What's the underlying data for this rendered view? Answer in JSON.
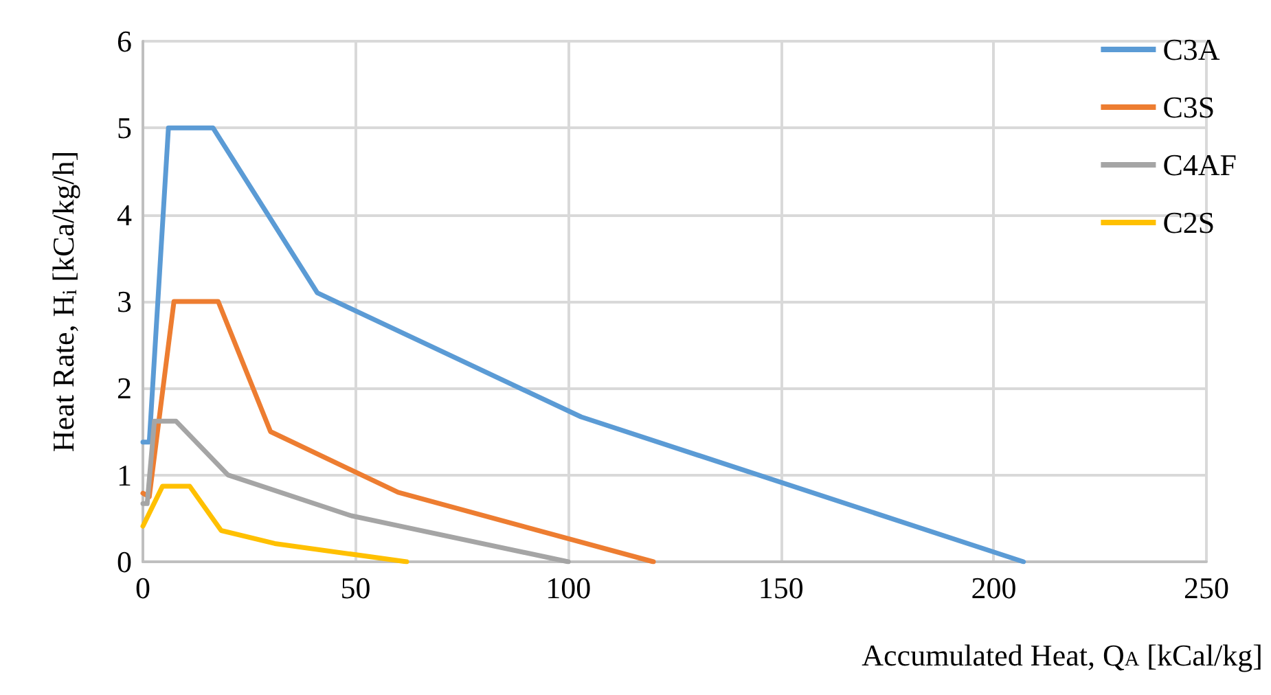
{
  "chart_data": {
    "type": "line",
    "xlabel": "Accumulated Heat, Q$_{A}$ [kCal/kg]",
    "ylabel": "Heat Rate, H$_{i}$ [kCa/kg/h]",
    "xlim": [
      0,
      250
    ],
    "xticks": [
      0,
      50,
      100,
      150,
      200,
      250
    ],
    "ylim": [
      0,
      6
    ],
    "yticks": [
      0,
      1,
      2,
      3,
      4,
      5,
      6
    ],
    "grid": true,
    "legend": "top right",
    "marker": "none",
    "line_style": "solid",
    "series": [
      {
        "name": "C3A",
        "color": "#5b9bd5",
        "x": [
          0,
          1.5,
          6,
          16.5,
          41,
          103,
          207
        ],
        "values": [
          1.38,
          1.38,
          5,
          5,
          3.1,
          1.67,
          0
        ]
      },
      {
        "name": "C3S",
        "color": "#ed7d31",
        "x": [
          0,
          1.5,
          7.3,
          17.7,
          30,
          60,
          120
        ],
        "values": [
          0.79,
          0.75,
          3,
          3,
          1.5,
          0.8,
          0
        ]
      },
      {
        "name": "C4AF",
        "color": "#a5a5a5",
        "x": [
          0,
          1,
          2.7,
          7.8,
          20,
          49,
          100
        ],
        "values": [
          0.67,
          0.67,
          1.62,
          1.62,
          1,
          0.53,
          0
        ]
      },
      {
        "name": "C2S",
        "color": "#ffc000",
        "x": [
          0,
          4.6,
          11,
          18.4,
          31,
          62
        ],
        "values": [
          0.41,
          0.87,
          0.87,
          0.36,
          0.21,
          0
        ]
      }
    ]
  }
}
